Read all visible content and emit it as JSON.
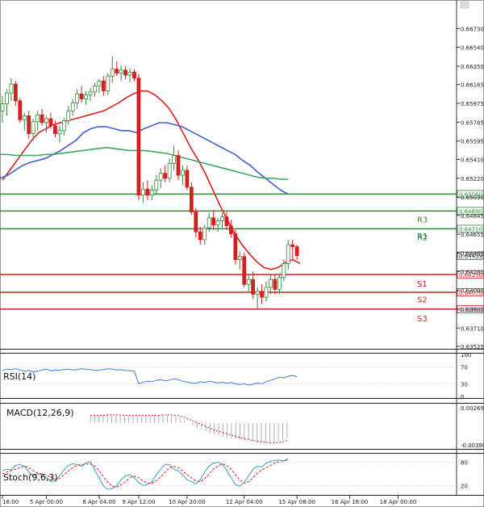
{
  "colors": {
    "bull": "#2e8b3a",
    "bear": "#d42020",
    "ma_red": "#e02020",
    "ma_blue": "#4060d0",
    "ma_green": "#3aa860",
    "support": "#d42020",
    "resistance": "#2e8b3a",
    "rsi": "#3a7fd8",
    "macd_hist": "#b0b0b0",
    "macd_signal": "#e02020",
    "stoch_k": "#3aa0c8",
    "stoch_d": "#e02020"
  },
  "chart_data": [
    {
      "type": "candlestick",
      "name": "price",
      "ylim": [
        0.63525,
        0.6683
      ],
      "y_ticks": [
        "0.66730",
        "0.66540",
        "0.66350",
        "0.66165",
        "0.65975",
        "0.65785",
        "0.65595",
        "0.65410",
        "0.65220",
        "0.65030",
        "0.64845",
        "0.64655",
        "0.64465",
        "0.64280",
        "0.64090",
        "0.63900",
        "0.63710",
        "0.63525"
      ],
      "x_ticks": [
        "16:00",
        "5 Apr 00:00",
        "8 Apr 04:00",
        "9 Apr 12:00",
        "10 Apr 20:00",
        "12 Apr 04:00",
        "15 Apr 08:00",
        "16 Apr 16:00",
        "18 Apr 00:00"
      ],
      "x_tick_index": [
        0,
        10,
        22,
        31,
        42,
        55,
        67,
        79,
        90
      ],
      "candles": [
        [
          0.659,
          0.6605,
          0.6578,
          0.6597
        ],
        [
          0.6597,
          0.6612,
          0.6585,
          0.6608
        ],
        [
          0.6608,
          0.6623,
          0.66,
          0.6617
        ],
        [
          0.6617,
          0.662,
          0.6595,
          0.66
        ],
        [
          0.66,
          0.6603,
          0.6578,
          0.6581
        ],
        [
          0.6581,
          0.6588,
          0.657,
          0.6585
        ],
        [
          0.6585,
          0.659,
          0.6562,
          0.6567
        ],
        [
          0.6567,
          0.6582,
          0.656,
          0.6579
        ],
        [
          0.6579,
          0.659,
          0.657,
          0.6586
        ],
        [
          0.6586,
          0.6592,
          0.6575,
          0.6578
        ],
        [
          0.6578,
          0.6585,
          0.6568,
          0.6582
        ],
        [
          0.6582,
          0.6588,
          0.6572,
          0.6575
        ],
        [
          0.6575,
          0.658,
          0.6563,
          0.6567
        ],
        [
          0.6567,
          0.6575,
          0.6558,
          0.657
        ],
        [
          0.657,
          0.6583,
          0.6565,
          0.658
        ],
        [
          0.658,
          0.6595,
          0.6576,
          0.659
        ],
        [
          0.659,
          0.6602,
          0.6585,
          0.6598
        ],
        [
          0.6598,
          0.6612,
          0.6592,
          0.6607
        ],
        [
          0.6607,
          0.6615,
          0.6598,
          0.6602
        ],
        [
          0.6602,
          0.661,
          0.6596,
          0.6606
        ],
        [
          0.6606,
          0.6613,
          0.66,
          0.6609
        ],
        [
          0.6609,
          0.6618,
          0.6604,
          0.6615
        ],
        [
          0.6615,
          0.6622,
          0.6608,
          0.662
        ],
        [
          0.662,
          0.6625,
          0.6605,
          0.661
        ],
        [
          0.661,
          0.6628,
          0.6606,
          0.6625
        ],
        [
          0.6625,
          0.6645,
          0.6618,
          0.6632
        ],
        [
          0.6632,
          0.664,
          0.6625,
          0.6628
        ],
        [
          0.6628,
          0.6636,
          0.662,
          0.6631
        ],
        [
          0.6631,
          0.6635,
          0.6622,
          0.6626
        ],
        [
          0.6626,
          0.6633,
          0.6619,
          0.6629
        ],
        [
          0.6629,
          0.6632,
          0.662,
          0.6623
        ],
        [
          0.6623,
          0.6627,
          0.65,
          0.6505
        ],
        [
          0.6505,
          0.6518,
          0.6497,
          0.6511
        ],
        [
          0.6511,
          0.652,
          0.65,
          0.6505
        ],
        [
          0.6505,
          0.6515,
          0.65,
          0.651
        ],
        [
          0.651,
          0.6525,
          0.6505,
          0.652
        ],
        [
          0.652,
          0.6532,
          0.6512,
          0.6527
        ],
        [
          0.6527,
          0.6535,
          0.6518,
          0.6522
        ],
        [
          0.6522,
          0.6542,
          0.6518,
          0.6537
        ],
        [
          0.6537,
          0.6555,
          0.653,
          0.6545
        ],
        [
          0.6545,
          0.655,
          0.652,
          0.6525
        ],
        [
          0.6525,
          0.6535,
          0.6515,
          0.653
        ],
        [
          0.653,
          0.6535,
          0.651,
          0.6513
        ],
        [
          0.6513,
          0.6518,
          0.6485,
          0.6488
        ],
        [
          0.6488,
          0.6492,
          0.6462,
          0.6468
        ],
        [
          0.6468,
          0.6473,
          0.6455,
          0.646
        ],
        [
          0.646,
          0.6475,
          0.6455,
          0.6472
        ],
        [
          0.6472,
          0.6487,
          0.6468,
          0.6482
        ],
        [
          0.6482,
          0.649,
          0.647,
          0.6475
        ],
        [
          0.6475,
          0.6482,
          0.6468,
          0.6479
        ],
        [
          0.6479,
          0.6487,
          0.6472,
          0.6483
        ],
        [
          0.6483,
          0.6488,
          0.647,
          0.6474
        ],
        [
          0.6474,
          0.648,
          0.6462,
          0.6466
        ],
        [
          0.6466,
          0.647,
          0.6435,
          0.644
        ],
        [
          0.644,
          0.6448,
          0.643,
          0.6443
        ],
        [
          0.6443,
          0.6447,
          0.6412,
          0.6415
        ],
        [
          0.6415,
          0.6425,
          0.6408,
          0.642
        ],
        [
          0.642,
          0.6428,
          0.64,
          0.6405
        ],
        [
          0.6405,
          0.6412,
          0.639,
          0.6408
        ],
        [
          0.6408,
          0.6415,
          0.6395,
          0.6402
        ],
        [
          0.6402,
          0.6418,
          0.6398,
          0.6412
        ],
        [
          0.6412,
          0.6425,
          0.6405,
          0.642
        ],
        [
          0.642,
          0.6425,
          0.6405,
          0.641
        ],
        [
          0.641,
          0.6425,
          0.6405,
          0.6422
        ],
        [
          0.6422,
          0.644,
          0.6418,
          0.6436
        ],
        [
          0.6436,
          0.646,
          0.643,
          0.6455
        ],
        [
          0.6455,
          0.646,
          0.644,
          0.6453
        ],
        [
          0.6453,
          0.6455,
          0.644,
          0.6444
        ]
      ],
      "series": [
        {
          "name": "",
          "values": [
            0.652,
            0.653,
            0.654,
            0.655,
            0.656,
            0.6568,
            0.6572,
            0.6576,
            0.6578,
            0.658,
            0.6582,
            0.6584,
            0.6586,
            0.6588,
            0.659,
            0.6594,
            0.6598,
            0.6603,
            0.6607,
            0.661,
            0.661,
            0.6606,
            0.66,
            0.6592,
            0.658,
            0.6566,
            0.6552,
            0.654,
            0.6526,
            0.651,
            0.6494,
            0.648,
            0.6466,
            0.6455,
            0.6446,
            0.6438,
            0.6432,
            0.643,
            0.6432,
            0.6437,
            0.644,
            0.6436
          ]
        },
        {
          "name": "",
          "values": [
            0.6522,
            0.6525,
            0.653,
            0.6535,
            0.6538,
            0.654,
            0.6542,
            0.6546,
            0.655,
            0.6555,
            0.656,
            0.6568,
            0.6572,
            0.6574,
            0.6574,
            0.6572,
            0.657,
            0.657,
            0.6568,
            0.6572,
            0.6575,
            0.6578,
            0.6578,
            0.6576,
            0.6574,
            0.657,
            0.6566,
            0.6562,
            0.6558,
            0.6554,
            0.655,
            0.6546,
            0.654,
            0.6535,
            0.6528,
            0.6522,
            0.6516,
            0.651,
            0.6506
          ]
        },
        {
          "name": "",
          "values": [
            0.6546,
            0.6546,
            0.6545,
            0.6545,
            0.6545,
            0.6545,
            0.6546,
            0.6546,
            0.6547,
            0.6548,
            0.6549,
            0.655,
            0.6551,
            0.6552,
            0.6553,
            0.6552,
            0.6551,
            0.655,
            0.655,
            0.655,
            0.6549,
            0.6548,
            0.6547,
            0.6545,
            0.6543,
            0.6541,
            0.6539,
            0.6537,
            0.6535,
            0.6533,
            0.6531,
            0.6529,
            0.6527,
            0.6525,
            0.6523,
            0.6522,
            0.6522,
            0.6521,
            0.6521
          ]
        }
      ],
      "levels": [
        {
          "label": "",
          "value": 0.6506,
          "text": "0.65060"
        },
        {
          "label": "R3",
          "value": 0.6489,
          "text": "0.64890"
        },
        {
          "label": "R2",
          "value": 0.6471,
          "text": "0.64710"
        },
        {
          "label": "S1",
          "value": 0.6425,
          "text": "0.64250"
        },
        {
          "label": "S2",
          "value": 0.6407,
          "text": "0.64070"
        },
        {
          "label": "S3",
          "value": 0.639,
          "text": "0.63900"
        }
      ],
      "pivot_labels": [
        {
          "label": "R1",
          "value": 0.6464
        },
        {
          "label": "S1",
          "value": 0.6416
        },
        {
          "label": "S2",
          "value": 0.64
        },
        {
          "label": "S3",
          "value": 0.6381
        }
      ],
      "current_price": {
        "value": 0.64439,
        "text": "0.64439"
      }
    },
    {
      "type": "line",
      "name": "RSI(14)",
      "title": "RSI(14)",
      "ylim": [
        0,
        100
      ],
      "y_ticks": [
        "100",
        "70",
        "30",
        "0"
      ],
      "values": [
        62,
        65,
        64,
        66,
        63,
        60,
        62,
        58,
        60,
        63,
        65,
        61,
        63,
        62,
        64,
        65,
        63,
        64,
        66,
        65,
        64,
        62,
        63,
        64,
        66,
        65,
        63,
        64,
        62,
        61,
        60,
        30,
        34,
        36,
        35,
        38,
        40,
        37,
        39,
        42,
        40,
        36,
        34,
        32,
        31,
        35,
        33,
        36,
        34,
        32,
        34,
        31,
        33,
        30,
        28,
        30,
        27,
        29,
        32,
        30,
        35,
        38,
        42,
        46,
        44,
        48,
        50,
        47
      ]
    },
    {
      "type": "bar",
      "name": "MACD(12,26,9)",
      "title": "MACD(12,26,9)",
      "y_ticks": [
        "0.002699",
        "-0.003807"
      ],
      "ylim": [
        -0.004,
        0.003
      ],
      "values": [
        0.0011,
        0.0012,
        0.0012,
        0.0013,
        0.0013,
        0.0013,
        0.0012,
        0.0012,
        0.0012,
        0.0012,
        0.0011,
        0.0011,
        0.0011,
        0.0012,
        0.0012,
        0.0013,
        0.0013,
        0.0013,
        0.0013,
        0.0012,
        0.0011,
        0.0008,
        0.0004,
        0.0,
        -0.0004,
        -0.0008,
        -0.0011,
        -0.0014,
        -0.0017,
        -0.0019,
        -0.0021,
        -0.0023,
        -0.0025,
        -0.0026,
        -0.0027,
        -0.0028,
        -0.0029,
        -0.003,
        -0.0031,
        -0.0032,
        -0.0033,
        -0.0034,
        -0.0034,
        -0.0033,
        -0.003,
        -0.0027,
        -0.0024
      ],
      "signal": [
        0.0012,
        0.0012,
        0.0012,
        0.0012,
        0.0013,
        0.0013,
        0.0013,
        0.0013,
        0.0012,
        0.0012,
        0.0012,
        0.0012,
        0.0012,
        0.0012,
        0.0012,
        0.0012,
        0.0012,
        0.0013,
        0.0013,
        0.0013,
        0.0012,
        0.0011,
        0.0009,
        0.0006,
        0.0003,
        0.0,
        -0.0003,
        -0.0006,
        -0.0009,
        -0.0012,
        -0.0014,
        -0.0016,
        -0.0018,
        -0.002,
        -0.0022,
        -0.0024,
        -0.0026,
        -0.0027,
        -0.0029,
        -0.003,
        -0.0031,
        -0.0032,
        -0.0033,
        -0.0033,
        -0.0032,
        -0.0031,
        -0.0029
      ]
    },
    {
      "type": "line",
      "name": "Stoch(9,6,3)",
      "title": "Stoch(9,6,3)",
      "ylim": [
        0,
        100
      ],
      "y_ticks": [
        "80",
        "20"
      ],
      "series": [
        {
          "name": "",
          "values": [
            58,
            62,
            60,
            72,
            74,
            70,
            55,
            45,
            50,
            48,
            40,
            30,
            32,
            45,
            60,
            72,
            76,
            74,
            70,
            78,
            82,
            60,
            40,
            18,
            10,
            12,
            20,
            35,
            45,
            48,
            40,
            28,
            20,
            22,
            30,
            48,
            62,
            75,
            74,
            62,
            58,
            48,
            35,
            30,
            24,
            35,
            55,
            70,
            78,
            80,
            75,
            60,
            40,
            22,
            18,
            28,
            45,
            62,
            70,
            68,
            78,
            82,
            85,
            86,
            83,
            90
          ]
        },
        {
          "name": "",
          "values": [
            50,
            55,
            58,
            62,
            66,
            70,
            66,
            58,
            52,
            50,
            47,
            40,
            36,
            38,
            48,
            58,
            66,
            72,
            74,
            75,
            76,
            70,
            58,
            42,
            28,
            18,
            16,
            22,
            30,
            40,
            44,
            40,
            32,
            26,
            26,
            32,
            42,
            55,
            66,
            70,
            66,
            58,
            48,
            40,
            32,
            30,
            38,
            50,
            62,
            70,
            76,
            72,
            62,
            48,
            34,
            26,
            30,
            40,
            52,
            60,
            66,
            72,
            78,
            82,
            84,
            86
          ]
        }
      ]
    }
  ]
}
